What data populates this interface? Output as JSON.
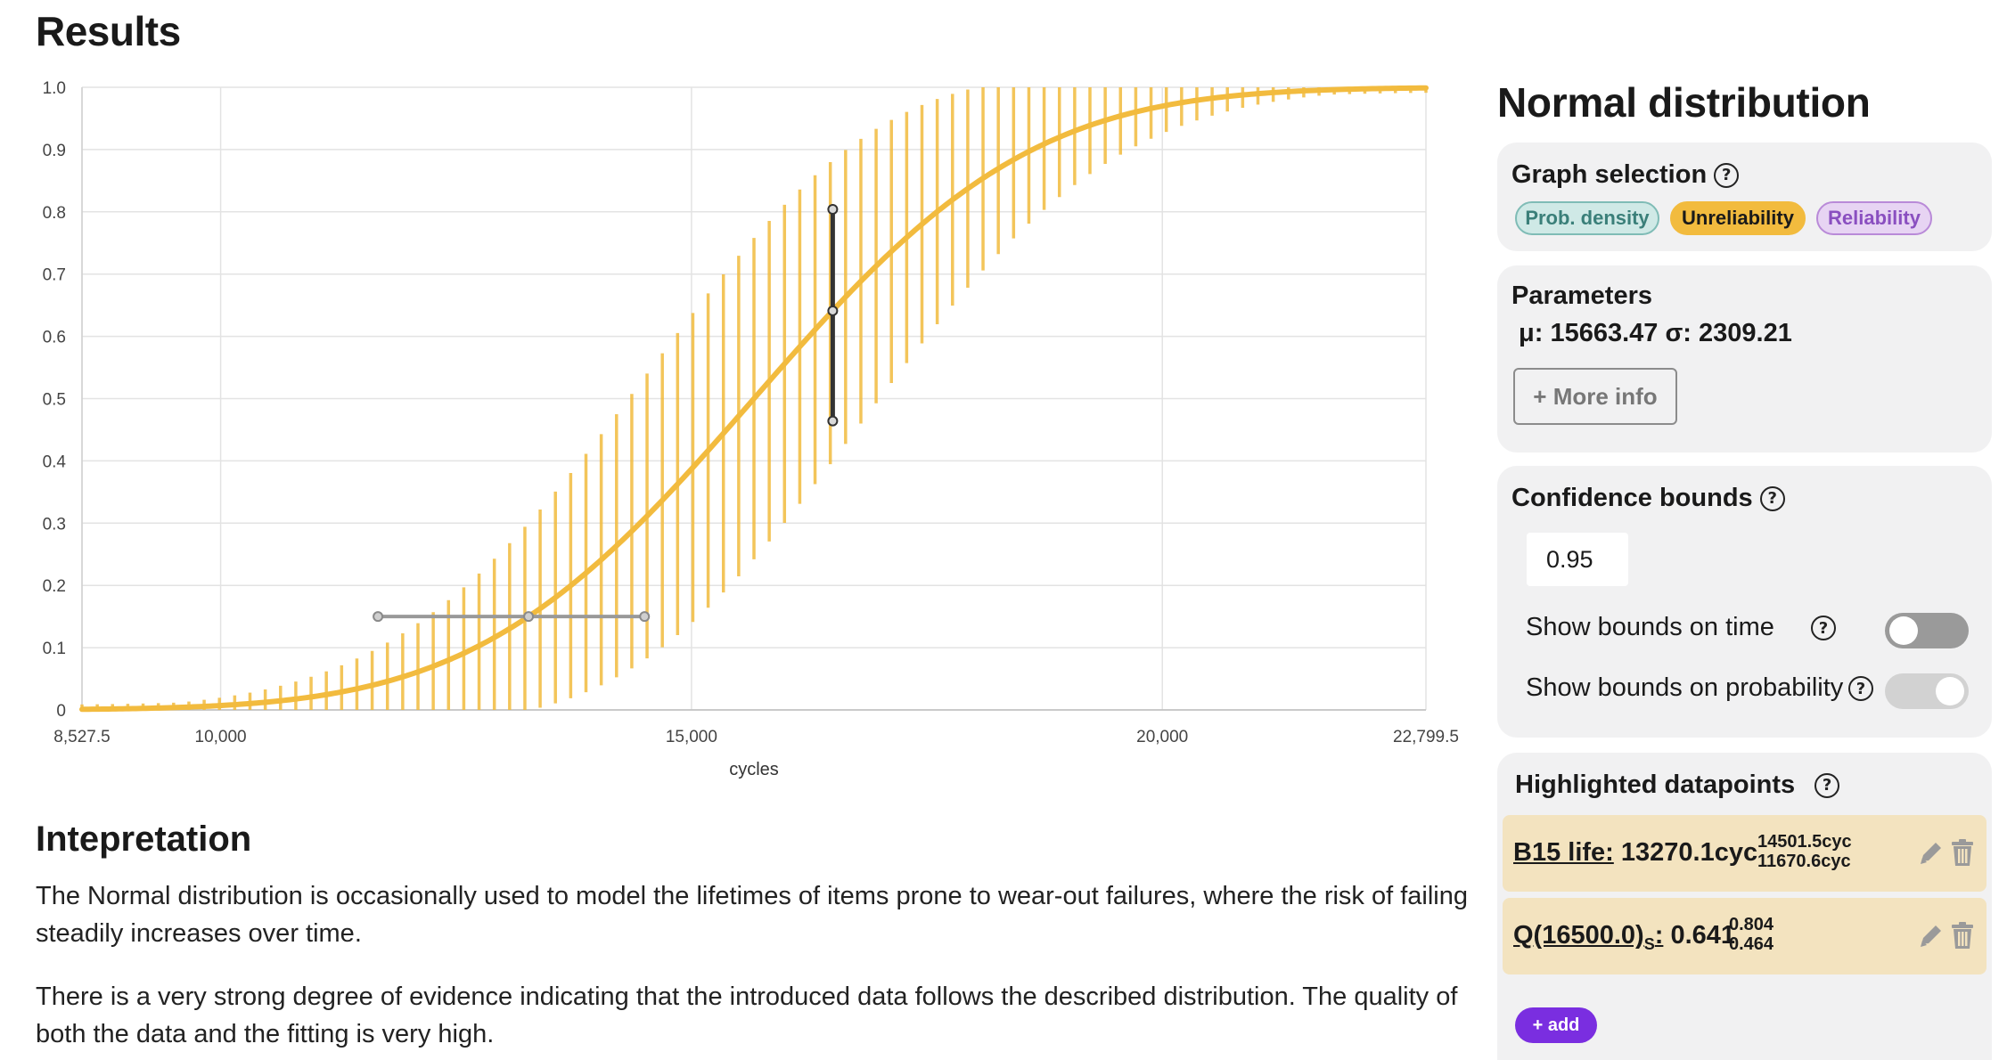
{
  "results_title": "Results",
  "chart_data": {
    "type": "line",
    "xlabel": "cycles",
    "ylabel": "",
    "xlim": [
      8527.5,
      22799.5
    ],
    "ylim": [
      0,
      1.0
    ],
    "x_ticks": [
      8527.5,
      10000,
      15000,
      20000,
      22799.5
    ],
    "x_tick_labels": [
      "8,527.5",
      "10,000",
      "15,000",
      "20,000",
      "22,799.5"
    ],
    "y_ticks": [
      0,
      0.1,
      0.2,
      0.3,
      0.4,
      0.5,
      0.6,
      0.7,
      0.8,
      0.9,
      1.0
    ],
    "y_tick_labels": [
      "0",
      "0.1",
      "0.2",
      "0.3",
      "0.4",
      "0.5",
      "0.6",
      "0.7",
      "0.8",
      "0.9",
      "1.0"
    ],
    "grid": true,
    "series": [
      {
        "type": "normal-cdf",
        "mu": 15663.47,
        "sigma": 2309.21,
        "color": "#f2bb3e"
      }
    ],
    "confidence_band": {
      "level": 0.95,
      "color": "#f2bb3e",
      "style": "vertical-hatch"
    },
    "highlights": [
      {
        "kind": "horizontal",
        "y": 0.15,
        "x": 13270.1,
        "x_low": 11670.6,
        "x_high": 14501.5,
        "color": "#999999"
      },
      {
        "kind": "vertical",
        "x": 16500.0,
        "y": 0.641,
        "y_low": 0.464,
        "y_high": 0.804,
        "color": "#333333"
      }
    ]
  },
  "interpretation": {
    "title": "Intepretation",
    "p1": "The Normal distribution is occasionally used to model the lifetimes of items prone to wear-out failures, where the risk of failing steadily increases over time.",
    "p2": "There is a very strong degree of evidence indicating that the introduced data follows the described distribution. The quality of both the data and the fitting is very high."
  },
  "panel": {
    "title": "Normal distribution",
    "graph_selection": {
      "title": "Graph selection",
      "options": [
        "Prob. density",
        "Unreliability",
        "Reliability"
      ],
      "selected": "Unreliability"
    },
    "parameters": {
      "title": "Parameters",
      "line": "μ: 15663.47   σ: 2309.21",
      "more_info": "+ More info"
    },
    "confidence": {
      "title": "Confidence bounds",
      "value": "0.95",
      "show_time": "Show bounds on time",
      "show_prob": "Show bounds on probability",
      "time_on": false,
      "prob_on": true
    },
    "highlighted": {
      "title": "Highlighted datapoints",
      "rows": [
        {
          "link": "B15 life:",
          "value": " 13270.1cyc",
          "upper": "14501.5cyc",
          "lower": "11670.6cyc"
        },
        {
          "link": "Q(16500.0)",
          "sub": "S",
          "colon": ":",
          "value": " 0.641",
          "upper": "0.804",
          "lower": "0.464"
        }
      ],
      "add": "+ add"
    }
  }
}
